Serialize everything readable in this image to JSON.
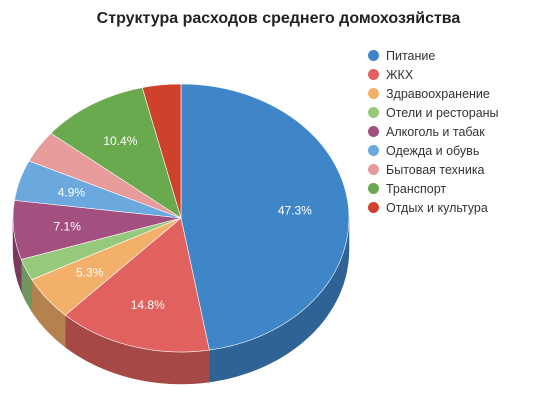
{
  "chart_data": {
    "type": "pie",
    "title": "Структура расходов среднего домохозяйства",
    "legend_position": "right",
    "three_d": true,
    "slices": [
      {
        "name": "Питание",
        "value": 47.3,
        "label": "47.3%",
        "color": "#3f86c9"
      },
      {
        "name": "ЖКХ",
        "value": 14.8,
        "label": "14.8%",
        "color": "#e0615d"
      },
      {
        "name": "Здравоохранение",
        "value": 5.3,
        "label": "5.3%",
        "color": "#f2b06b"
      },
      {
        "name": "Отели и рестораны",
        "value": 2.6,
        "label": "",
        "color": "#97c97d"
      },
      {
        "name": "Алкоголь и табак",
        "value": 7.1,
        "label": "7.1%",
        "color": "#a34f7f"
      },
      {
        "name": "Одежда и обувь",
        "value": 4.9,
        "label": "4.9%",
        "color": "#6aa8de"
      },
      {
        "name": "Бытовая техника",
        "value": 3.9,
        "label": "",
        "color": "#e89b9b"
      },
      {
        "name": "Транспорт",
        "value": 10.4,
        "label": "10.4%",
        "color": "#6aaa4f"
      },
      {
        "name": "Отдых и культура",
        "value": 3.7,
        "label": "",
        "color": "#d0412b"
      }
    ]
  }
}
